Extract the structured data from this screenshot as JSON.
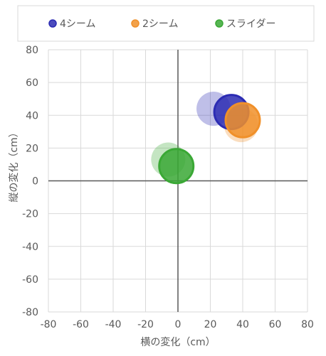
{
  "chart_data": {
    "type": "scatter",
    "subtype": "bubble",
    "xlabel": "横の変化（cm）",
    "ylabel": "縦の変化（cm）",
    "xlim": [
      -80,
      80
    ],
    "ylim": [
      -80,
      80
    ],
    "x_ticks": [
      "-80",
      "-60",
      "-40",
      "-20",
      "0",
      "20",
      "40",
      "60",
      "80"
    ],
    "y_ticks": [
      "80",
      "60",
      "40",
      "20",
      "0",
      "-20",
      "-40",
      "-60",
      "-80"
    ],
    "grid": true,
    "legend_position": "top",
    "series": [
      {
        "name": "4シーム",
        "color": "#2b2bb3",
        "points": [
          {
            "x": 22,
            "y": 44,
            "faded": true
          },
          {
            "x": 33,
            "y": 42,
            "faded": false
          }
        ]
      },
      {
        "name": "2シーム",
        "color": "#f0902a",
        "points": [
          {
            "x": 39,
            "y": 34,
            "faded": true
          },
          {
            "x": 40,
            "y": 37,
            "faded": false
          }
        ]
      },
      {
        "name": "スライダー",
        "color": "#3aa835",
        "points": [
          {
            "x": -6,
            "y": 13,
            "faded": true
          },
          {
            "x": -1,
            "y": 9,
            "faded": false
          }
        ]
      }
    ]
  }
}
